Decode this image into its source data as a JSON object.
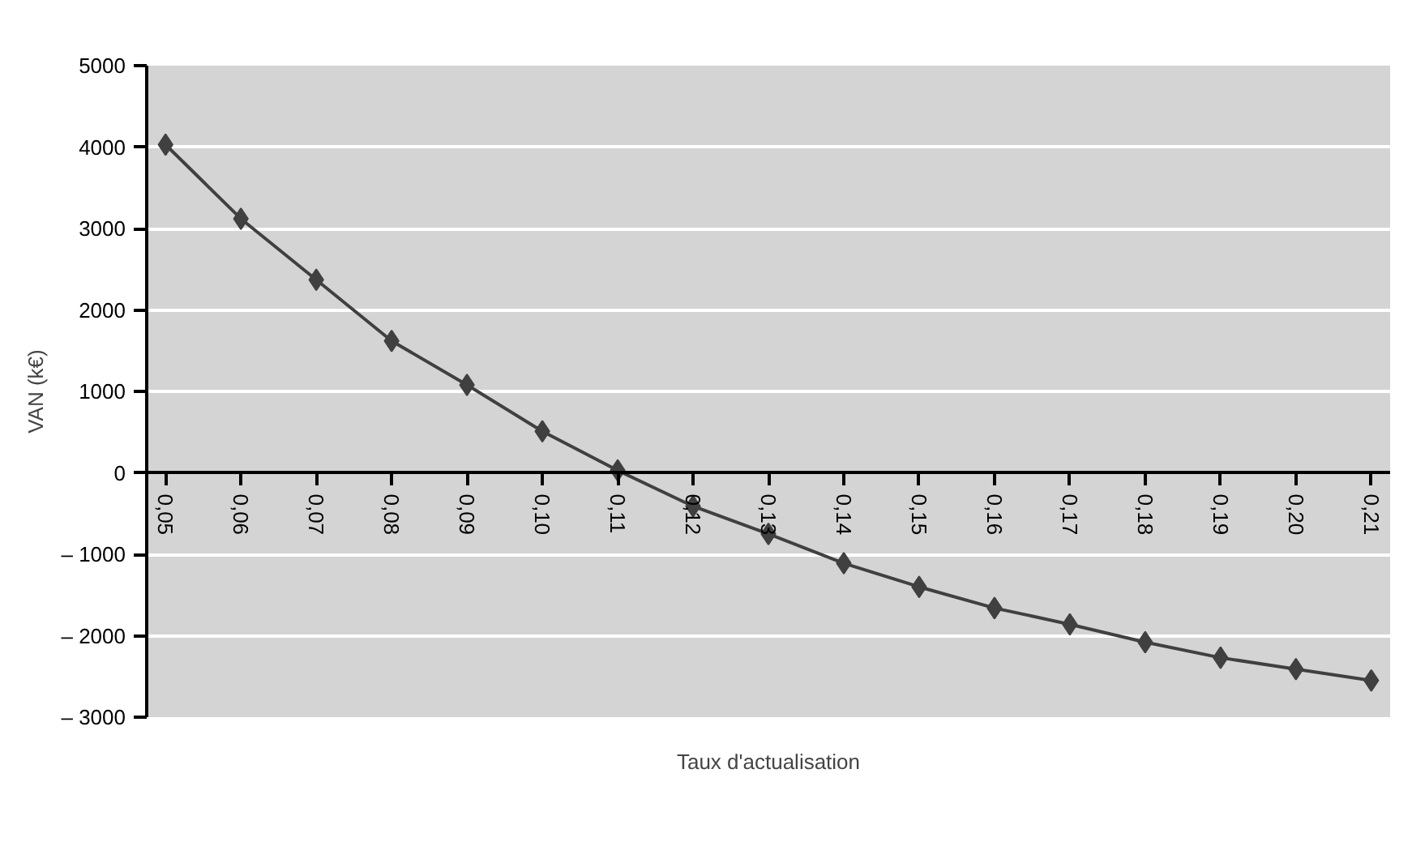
{
  "chart_data": {
    "type": "line",
    "xlabel": "Taux d'actualisation",
    "ylabel": "VAN (k€)",
    "categories": [
      "0,05",
      "0,06",
      "0,07",
      "0,08",
      "0,09",
      "0,10",
      "0,11",
      "0,12",
      "0,13",
      "0,14",
      "0,15",
      "0,16",
      "0,17",
      "0,18",
      "0,19",
      "0,20",
      "0,21"
    ],
    "series": [
      {
        "color": "#404040",
        "values": [
          4030,
          3120,
          2370,
          1620,
          1080,
          510,
          30,
          -410,
          -750,
          -1110,
          -1400,
          -1660,
          -1860,
          -2080,
          -2270,
          -2410,
          -2550
        ]
      }
    ],
    "ylim": [
      -3000,
      5000
    ],
    "yticks": [
      {
        "value": 5000,
        "label": "5000"
      },
      {
        "value": 4000,
        "label": "4000"
      },
      {
        "value": 3000,
        "label": "3000"
      },
      {
        "value": 2000,
        "label": "2000"
      },
      {
        "value": 1000,
        "label": "1000"
      },
      {
        "value": 0,
        "label": "0"
      },
      {
        "value": -1000,
        "label": "– 1000"
      },
      {
        "value": -2000,
        "label": "– 2000"
      },
      {
        "value": -3000,
        "label": "– 3000"
      }
    ],
    "grid": "y",
    "marker": "diamond",
    "line_style": "solid"
  }
}
